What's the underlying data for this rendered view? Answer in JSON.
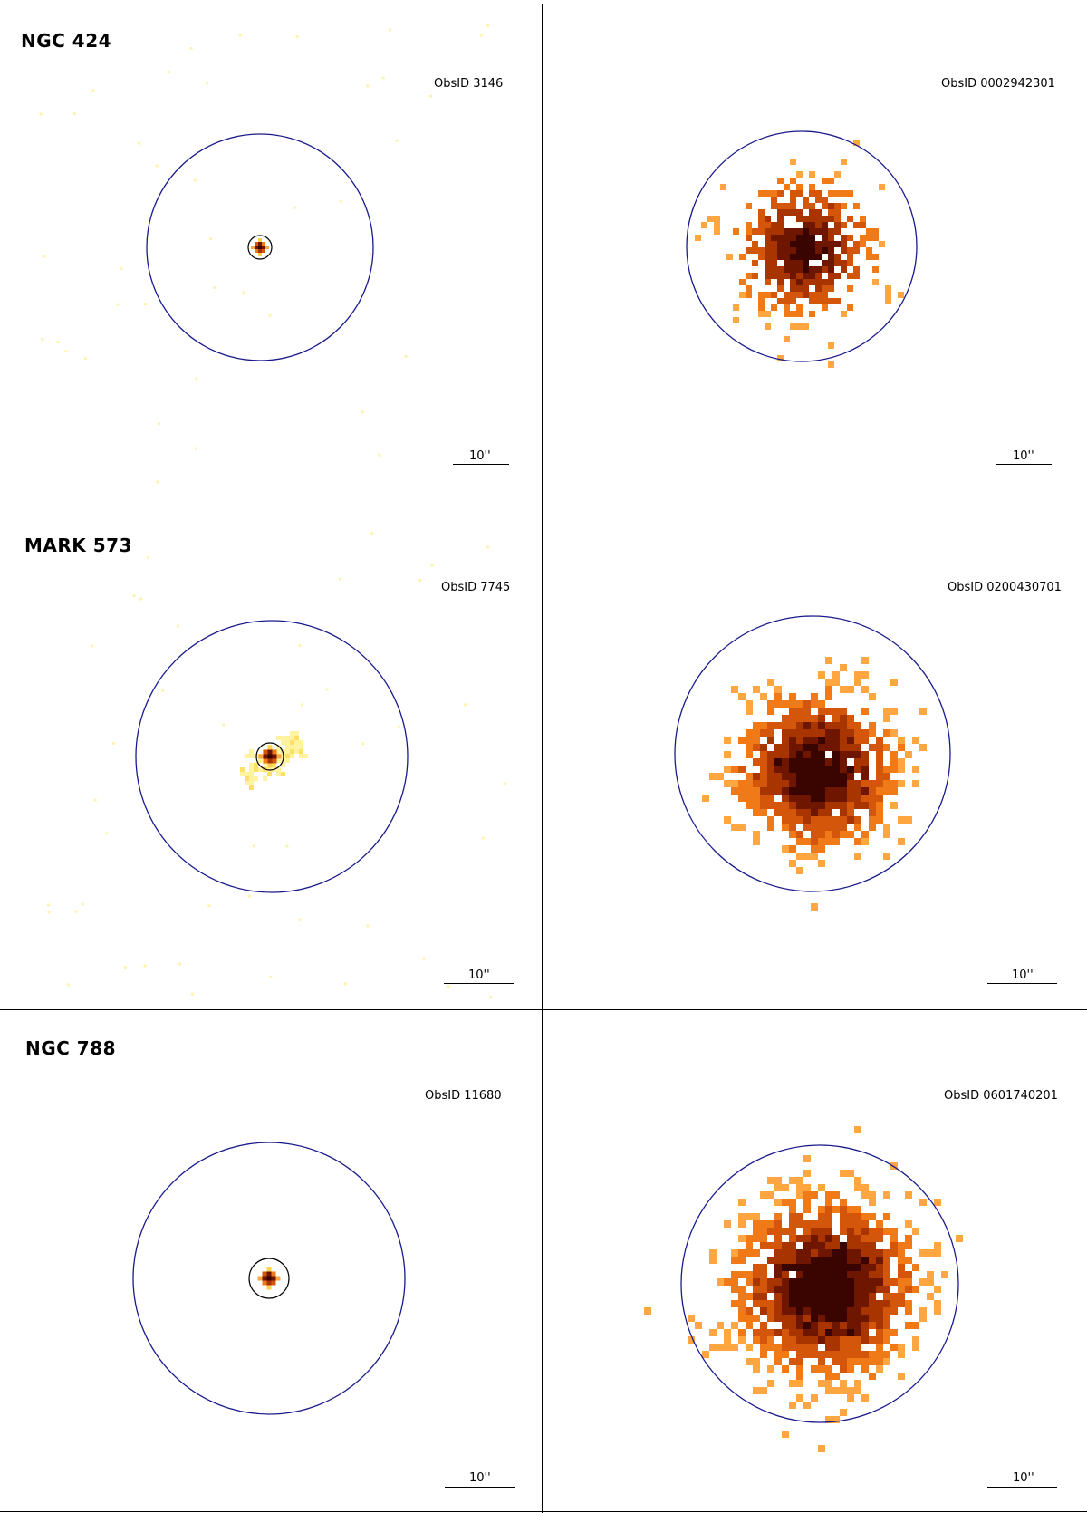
{
  "scale_label": "10''",
  "colors": {
    "aperture_circle": "#1a1a8c",
    "inner_circle": "#000000",
    "colormap": [
      "#fff7a8",
      "#ffd04d",
      "#ffa640",
      "#f07a18",
      "#d4560a",
      "#a83400",
      "#6e1600",
      "#3a0500"
    ]
  },
  "rows": [
    {
      "object": "NGC 424",
      "chandra": {
        "obsid": "ObsID 3146"
      },
      "xmm": {
        "obsid": "ObsID 0002942301"
      }
    },
    {
      "object": "MARK 573",
      "chandra": {
        "obsid": "ObsID 7745"
      },
      "xmm": {
        "obsid": "ObsID 0200430701"
      }
    },
    {
      "object": "NGC 788",
      "chandra": {
        "obsid": "ObsID 11680"
      },
      "xmm": {
        "obsid": "ObsID 0601740201"
      }
    }
  ]
}
